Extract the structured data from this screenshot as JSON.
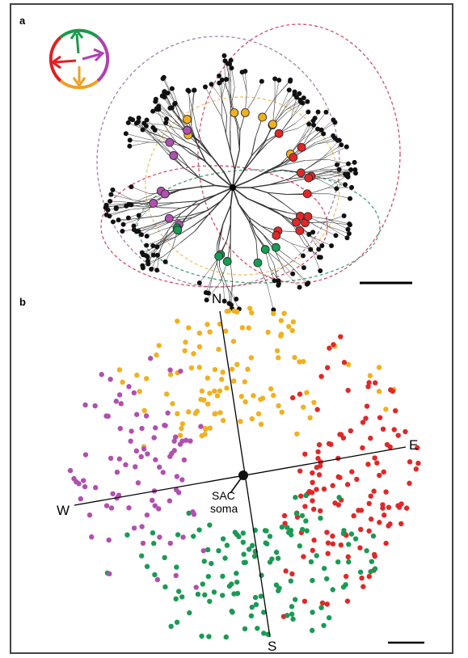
{
  "panel_a": {
    "label": "a"
  },
  "panel_b": {
    "label": "b",
    "north": "N",
    "south": "S",
    "east": "E",
    "west": "W",
    "soma_label": [
      "SAC",
      "soma"
    ]
  }
}
